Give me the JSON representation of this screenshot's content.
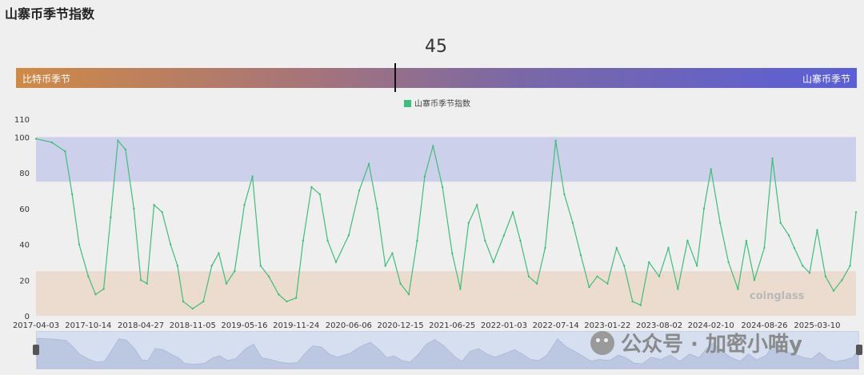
{
  "page": {
    "title": "山寨币季节指数"
  },
  "gauge": {
    "value": "45",
    "left_label": "比特币季节",
    "right_label": "山寨币季节",
    "level": 45
  },
  "legend": {
    "label": "山寨币季节指数"
  },
  "watermarks": {
    "brand": "coinglass",
    "wechat": "公众号 · 加密小喵y"
  },
  "colors": {
    "line": "#3cbf7a",
    "altseason_band": "#ccd0ea",
    "bitcoin_band": "#ecdcd0",
    "gauge_left": "#cf8a45",
    "gauge_right": "#5a5ed8"
  },
  "chart_data": {
    "type": "line",
    "series": [
      {
        "name": "山寨币季节指数"
      }
    ],
    "ylim": [
      0,
      110
    ],
    "yticks": [
      "0",
      "20",
      "40",
      "60",
      "80",
      "100",
      "110"
    ],
    "bands": [
      {
        "from": 75,
        "to": 100,
        "meaning": "altcoin season"
      },
      {
        "from": 0,
        "to": 25,
        "meaning": "bitcoin season"
      }
    ],
    "x_tick_labels": [
      "2017-04-03",
      "2017-10-14",
      "2018-04-27",
      "2018-11-05",
      "2019-05-16",
      "2019-11-24",
      "2020-06-06",
      "2020-12-15",
      "2021-06-25",
      "2022-01-03",
      "2022-07-14",
      "2023-01-22",
      "2023-08-02",
      "2024-02-10",
      "2024-08-26",
      "2025-03-10"
    ],
    "x": [
      "2017-04-03",
      "2017-06-01",
      "2017-07-20",
      "2017-08-15",
      "2017-09-10",
      "2017-10-14",
      "2017-11-10",
      "2017-12-10",
      "2018-01-05",
      "2018-02-01",
      "2018-03-01",
      "2018-04-01",
      "2018-04-27",
      "2018-05-20",
      "2018-06-15",
      "2018-07-15",
      "2018-08-15",
      "2018-09-10",
      "2018-10-01",
      "2018-11-05",
      "2018-12-15",
      "2019-01-15",
      "2019-02-10",
      "2019-03-10",
      "2019-04-10",
      "2019-05-16",
      "2019-06-15",
      "2019-07-15",
      "2019-08-15",
      "2019-09-20",
      "2019-10-20",
      "2019-11-24",
      "2019-12-20",
      "2020-01-20",
      "2020-02-20",
      "2020-03-20",
      "2020-04-20",
      "2020-06-06",
      "2020-07-15",
      "2020-08-20",
      "2020-09-20",
      "2020-10-20",
      "2020-11-15",
      "2020-12-15",
      "2021-01-15",
      "2021-02-15",
      "2021-03-15",
      "2021-04-15",
      "2021-05-20",
      "2021-06-25",
      "2021-07-25",
      "2021-08-25",
      "2021-09-25",
      "2021-10-25",
      "2021-11-25",
      "2022-01-03",
      "2022-02-05",
      "2022-03-05",
      "2022-04-05",
      "2022-05-05",
      "2022-06-05",
      "2022-07-14",
      "2022-08-15",
      "2022-09-15",
      "2022-10-15",
      "2022-11-15",
      "2022-12-15",
      "2023-01-22",
      "2023-02-25",
      "2023-03-25",
      "2023-04-25",
      "2023-05-25",
      "2023-06-25",
      "2023-08-02",
      "2023-09-05",
      "2023-10-10",
      "2023-11-15",
      "2023-12-20",
      "2024-01-15",
      "2024-02-10",
      "2024-03-15",
      "2024-04-15",
      "2024-05-20",
      "2024-06-20",
      "2024-07-20",
      "2024-08-26",
      "2024-09-25",
      "2024-10-25",
      "2024-11-25",
      "2024-12-15",
      "2025-01-15",
      "2025-02-10",
      "2025-03-10",
      "2025-04-10",
      "2025-05-10",
      "2025-06-10",
      "2025-07-10",
      "2025-08-01"
    ],
    "values": [
      99,
      97,
      92,
      68,
      40,
      22,
      12,
      15,
      55,
      98,
      93,
      60,
      20,
      18,
      62,
      58,
      40,
      28,
      8,
      4,
      8,
      28,
      35,
      18,
      25,
      62,
      78,
      28,
      22,
      12,
      8,
      10,
      42,
      72,
      68,
      42,
      30,
      45,
      70,
      85,
      60,
      28,
      35,
      18,
      12,
      42,
      78,
      95,
      72,
      35,
      15,
      52,
      62,
      42,
      30,
      45,
      58,
      42,
      22,
      18,
      38,
      98,
      68,
      52,
      34,
      16,
      22,
      18,
      38,
      28,
      8,
      6,
      30,
      22,
      38,
      15,
      42,
      28,
      60,
      82,
      52,
      30,
      15,
      42,
      20,
      38,
      88,
      52,
      45,
      38,
      28,
      24,
      48,
      22,
      14,
      20,
      28,
      58
    ]
  }
}
